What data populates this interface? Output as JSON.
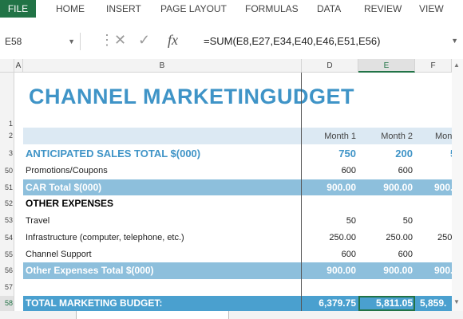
{
  "ribbon": {
    "file": "FILE",
    "tabs": [
      "HOME",
      "INSERT",
      "PAGE LAYOUT",
      "FORMULAS",
      "DATA",
      "REVIEW",
      "VIEW"
    ]
  },
  "formula_bar": {
    "name_box": "E58",
    "fx": "fx",
    "formula": "=SUM(E8,E27,E34,E40,E46,E51,E56)"
  },
  "columns": [
    "A",
    "B",
    "D",
    "E",
    "F"
  ],
  "rows": [
    "1",
    "2",
    "3",
    "50",
    "51",
    "52",
    "53",
    "54",
    "55",
    "56",
    "57",
    "58"
  ],
  "sheet": {
    "title": "CHANNEL MARKETINGUDGET",
    "month_headers": [
      "Month  1",
      "Month  2",
      "Mont"
    ],
    "anticipated": {
      "label": "ANTICIPATED SALES TOTAL $(000)",
      "values": [
        "750",
        "200",
        "5"
      ]
    },
    "promotions": {
      "label": "Promotions/Coupons",
      "values": [
        "600",
        "600",
        ""
      ]
    },
    "car_total": {
      "label": "CAR Total $(000)",
      "values": [
        "900.00",
        "900.00",
        "900."
      ]
    },
    "other_expenses": "OTHER EXPENSES",
    "travel": {
      "label": "Travel",
      "values": [
        "50",
        "50",
        ""
      ]
    },
    "infrastructure": {
      "label": "Infrastructure (computer, telephone, etc.)",
      "values": [
        "250.00",
        "250.00",
        "250"
      ]
    },
    "channel_support": {
      "label": "Channel Support",
      "values": [
        "600",
        "600",
        ""
      ]
    },
    "other_total": {
      "label": "Other Expenses Total $(000)",
      "values": [
        "900.00",
        "900.00",
        "900."
      ]
    },
    "total_budget": {
      "label": "TOTAL MARKETING BUDGET:",
      "values": [
        "6,379.75",
        "5,811.05",
        "5,859."
      ]
    }
  },
  "colors": {
    "accent": "#3f94c7",
    "band_light": "#dce9f3",
    "band_mid": "#8dbfdc",
    "band_dark": "#4aa0cf",
    "excel_green": "#217346"
  }
}
